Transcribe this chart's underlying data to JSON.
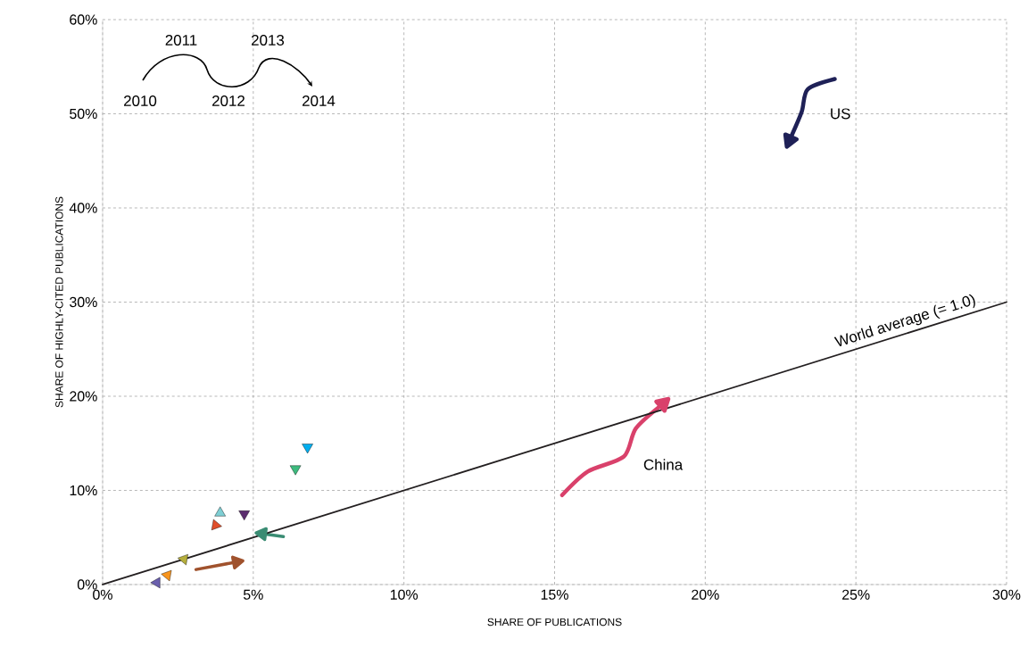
{
  "chart_data": {
    "type": "line",
    "xlabel": "SHARE OF PUBLICATIONS",
    "ylabel": "SHARE OF HIGHLY-CITED PUBLICATIONS",
    "xlim": [
      0,
      30
    ],
    "ylim": [
      0,
      60
    ],
    "xticks": [
      {
        "value": 0,
        "label": "0%"
      },
      {
        "value": 5,
        "label": "5%"
      },
      {
        "value": 10,
        "label": "10%"
      },
      {
        "value": 15,
        "label": "15%"
      },
      {
        "value": 20,
        "label": "20%"
      },
      {
        "value": 25,
        "label": "25%"
      },
      {
        "value": 30,
        "label": "30%"
      }
    ],
    "yticks": [
      {
        "value": 0,
        "label": "0%"
      },
      {
        "value": 10,
        "label": "10%"
      },
      {
        "value": 20,
        "label": "20%"
      },
      {
        "value": 30,
        "label": "30%"
      },
      {
        "value": 40,
        "label": "40%"
      },
      {
        "value": 50,
        "label": "50%"
      },
      {
        "value": 60,
        "label": "60%"
      }
    ],
    "grid": true,
    "legend": false,
    "marker": "none",
    "line_style": "solid",
    "annotations": [
      "2010",
      "2011",
      "2012",
      "2013",
      "2014"
    ],
    "series": [
      {
        "name": "US",
        "color": "#1f2157",
        "x": [
          24.3,
          23.4,
          23.2,
          22.8
        ],
        "values": [
          53.7,
          52.6,
          50.2,
          47.2
        ]
      },
      {
        "name": "China",
        "color": "#d9416b",
        "x": [
          15.25,
          16.1,
          17.3,
          17.7,
          18.6
        ],
        "values": [
          9.5,
          12.0,
          13.6,
          16.6,
          19.2
        ]
      },
      {
        "type": "scatter",
        "marker": "triangle",
        "color": "#00aeef",
        "x": [
          6.8
        ],
        "values": [
          14.6
        ]
      },
      {
        "type": "scatter",
        "marker": "triangle",
        "color": "#3dbb7e",
        "x": [
          6.4
        ],
        "values": [
          12.3
        ]
      },
      {
        "type": "scatter",
        "marker": "triangle",
        "color": "#5b2d6e",
        "x": [
          4.7
        ],
        "values": [
          7.5
        ]
      },
      {
        "type": "scatter",
        "marker": "triangle",
        "color": "#7fcfd4",
        "x": [
          3.9
        ],
        "values": [
          7.6
        ]
      },
      {
        "type": "scatter",
        "marker": "triangle",
        "color": "#e04e2a",
        "x": [
          3.75
        ],
        "values": [
          6.3
        ]
      },
      {
        "marker": "triangle",
        "color": "#3a8c73",
        "x": [
          6.0,
          5.3
        ],
        "values": [
          5.1,
          5.4
        ]
      },
      {
        "type": "scatter",
        "marker": "triangle",
        "color": "#b5ae3c",
        "x": [
          2.7
        ],
        "values": [
          2.7
        ]
      },
      {
        "marker": "triangle",
        "color": "#a0522d",
        "x": [
          3.1,
          4.45
        ],
        "values": [
          1.6,
          2.4
        ]
      },
      {
        "type": "scatter",
        "marker": "triangle",
        "color": "#f7941d",
        "x": [
          2.15
        ],
        "values": [
          1.0
        ]
      },
      {
        "type": "scatter",
        "marker": "triangle",
        "color": "#6a5fad",
        "x": [
          1.8
        ],
        "values": [
          0.2
        ]
      },
      {
        "name": "World average (= 1.0)",
        "color": "#231f20",
        "x": [
          0,
          30
        ],
        "values": [
          0,
          30
        ]
      }
    ]
  }
}
